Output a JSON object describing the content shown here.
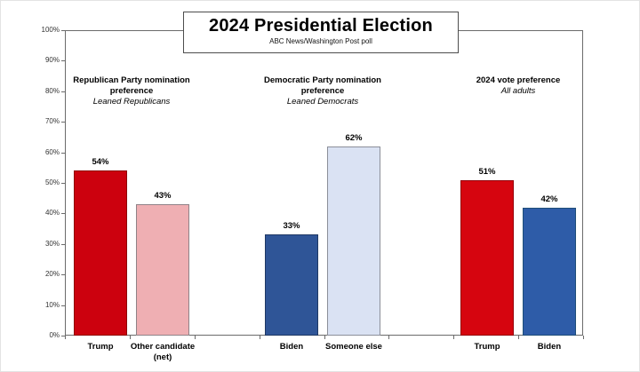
{
  "chart_data": {
    "type": "bar",
    "title": "2024 Presidential Election",
    "subtitle": "ABC News/Washington Post poll",
    "ylim": [
      0,
      100
    ],
    "grid": false,
    "y_tick_labels": [
      "0%",
      "10%",
      "20%",
      "30%",
      "40%",
      "50%",
      "60%",
      "70%",
      "80%",
      "90%",
      "100%"
    ],
    "groups": [
      {
        "header": "Republican Party nomination preference",
        "subheader": "Leaned Republicans",
        "bars": [
          {
            "category": "Trump",
            "value": 54,
            "value_label": "54%",
            "fill": "#CC010E",
            "border": "#8f0008"
          },
          {
            "category": "Other candidate (net)",
            "value": 43,
            "value_label": "43%",
            "fill": "#EFAFB3",
            "border": "#8f8388"
          }
        ]
      },
      {
        "header": "Democratic Party nomination preference",
        "subheader": "Leaned Democrats",
        "bars": [
          {
            "category": "Biden",
            "value": 33,
            "value_label": "33%",
            "fill": "#2F5597",
            "border": "#1F3864"
          },
          {
            "category": "Someone else",
            "value": 62,
            "value_label": "62%",
            "fill": "#DAE2F3",
            "border": "#8c8f99"
          }
        ]
      },
      {
        "header": "2024 vote preference",
        "subheader": "All adults",
        "bars": [
          {
            "category": "Trump",
            "value": 51,
            "value_label": "51%",
            "fill": "#D6050F",
            "border": "#96000a"
          },
          {
            "category": "Biden",
            "value": 42,
            "value_label": "42%",
            "fill": "#2E5CA8",
            "border": "#1F4E79"
          }
        ]
      }
    ]
  }
}
